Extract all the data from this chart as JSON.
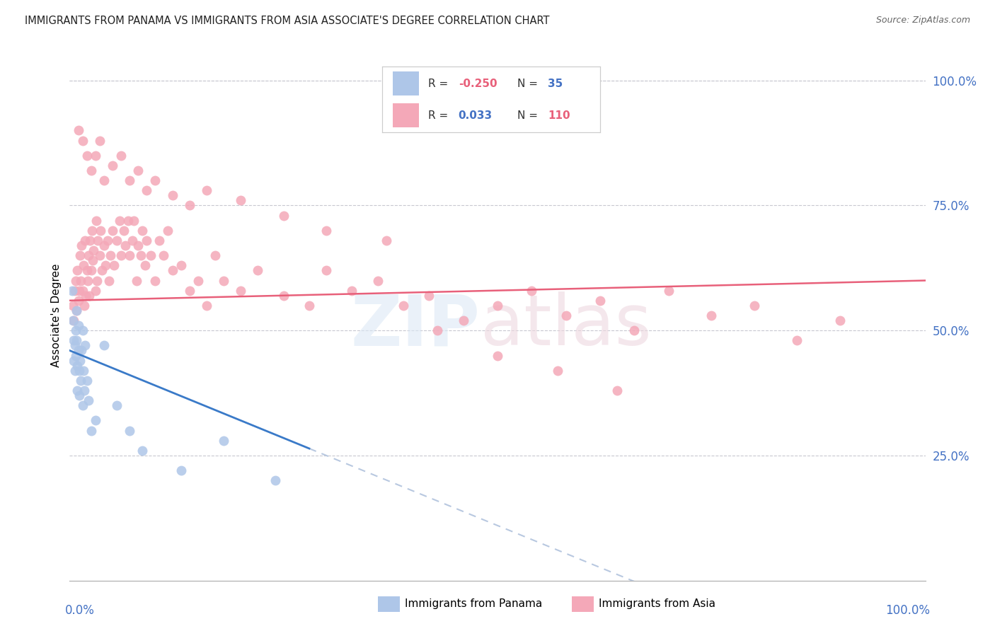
{
  "title": "IMMIGRANTS FROM PANAMA VS IMMIGRANTS FROM ASIA ASSOCIATE'S DEGREE CORRELATION CHART",
  "source": "Source: ZipAtlas.com",
  "ylabel": "Associate's Degree",
  "color_panama": "#aec6e8",
  "color_asia": "#f4a8b8",
  "color_panama_line": "#3a7ac8",
  "color_asia_line": "#e8607a",
  "color_dashed": "#b8c8e0",
  "color_grid": "#c8c8d0",
  "color_ytick": "#4472c4",
  "xlim": [
    0.0,
    1.0
  ],
  "ylim": [
    0.0,
    1.06
  ],
  "yticks": [
    0.0,
    0.25,
    0.5,
    0.75,
    1.0
  ],
  "ytick_labels": [
    "",
    "25.0%",
    "50.0%",
    "75.0%",
    "100.0%"
  ],
  "panama_x": [
    0.003,
    0.004,
    0.005,
    0.005,
    0.006,
    0.006,
    0.007,
    0.007,
    0.008,
    0.008,
    0.009,
    0.009,
    0.01,
    0.01,
    0.011,
    0.011,
    0.012,
    0.013,
    0.014,
    0.015,
    0.015,
    0.016,
    0.017,
    0.018,
    0.02,
    0.022,
    0.025,
    0.03,
    0.04,
    0.055,
    0.07,
    0.085,
    0.13,
    0.18,
    0.24
  ],
  "panama_y": [
    0.58,
    0.52,
    0.48,
    0.44,
    0.47,
    0.42,
    0.5,
    0.45,
    0.54,
    0.48,
    0.43,
    0.38,
    0.51,
    0.46,
    0.42,
    0.37,
    0.44,
    0.4,
    0.46,
    0.5,
    0.35,
    0.42,
    0.38,
    0.47,
    0.4,
    0.36,
    0.3,
    0.32,
    0.47,
    0.35,
    0.3,
    0.26,
    0.22,
    0.28,
    0.2
  ],
  "asia_x": [
    0.004,
    0.005,
    0.006,
    0.007,
    0.008,
    0.009,
    0.01,
    0.011,
    0.012,
    0.013,
    0.014,
    0.015,
    0.016,
    0.017,
    0.018,
    0.019,
    0.02,
    0.021,
    0.022,
    0.023,
    0.024,
    0.025,
    0.026,
    0.027,
    0.028,
    0.03,
    0.031,
    0.032,
    0.033,
    0.035,
    0.036,
    0.038,
    0.04,
    0.042,
    0.044,
    0.046,
    0.048,
    0.05,
    0.052,
    0.055,
    0.058,
    0.06,
    0.063,
    0.065,
    0.068,
    0.07,
    0.073,
    0.075,
    0.078,
    0.08,
    0.083,
    0.085,
    0.088,
    0.09,
    0.095,
    0.1,
    0.105,
    0.11,
    0.115,
    0.12,
    0.13,
    0.14,
    0.15,
    0.16,
    0.17,
    0.18,
    0.2,
    0.22,
    0.25,
    0.28,
    0.3,
    0.33,
    0.36,
    0.39,
    0.42,
    0.46,
    0.5,
    0.54,
    0.58,
    0.62,
    0.66,
    0.7,
    0.75,
    0.8,
    0.85,
    0.9,
    0.01,
    0.015,
    0.02,
    0.025,
    0.03,
    0.035,
    0.04,
    0.05,
    0.06,
    0.07,
    0.08,
    0.09,
    0.1,
    0.12,
    0.14,
    0.16,
    0.2,
    0.25,
    0.3,
    0.37,
    0.43,
    0.5,
    0.57,
    0.64
  ],
  "asia_y": [
    0.55,
    0.52,
    0.58,
    0.6,
    0.54,
    0.62,
    0.56,
    0.58,
    0.65,
    0.6,
    0.67,
    0.58,
    0.63,
    0.55,
    0.68,
    0.57,
    0.62,
    0.6,
    0.65,
    0.57,
    0.68,
    0.62,
    0.7,
    0.64,
    0.66,
    0.58,
    0.72,
    0.6,
    0.68,
    0.65,
    0.7,
    0.62,
    0.67,
    0.63,
    0.68,
    0.6,
    0.65,
    0.7,
    0.63,
    0.68,
    0.72,
    0.65,
    0.7,
    0.67,
    0.72,
    0.65,
    0.68,
    0.72,
    0.6,
    0.67,
    0.65,
    0.7,
    0.63,
    0.68,
    0.65,
    0.6,
    0.68,
    0.65,
    0.7,
    0.62,
    0.63,
    0.58,
    0.6,
    0.55,
    0.65,
    0.6,
    0.58,
    0.62,
    0.57,
    0.55,
    0.62,
    0.58,
    0.6,
    0.55,
    0.57,
    0.52,
    0.55,
    0.58,
    0.53,
    0.56,
    0.5,
    0.58,
    0.53,
    0.55,
    0.48,
    0.52,
    0.9,
    0.88,
    0.85,
    0.82,
    0.85,
    0.88,
    0.8,
    0.83,
    0.85,
    0.8,
    0.82,
    0.78,
    0.8,
    0.77,
    0.75,
    0.78,
    0.76,
    0.73,
    0.7,
    0.68,
    0.5,
    0.45,
    0.42,
    0.38
  ]
}
